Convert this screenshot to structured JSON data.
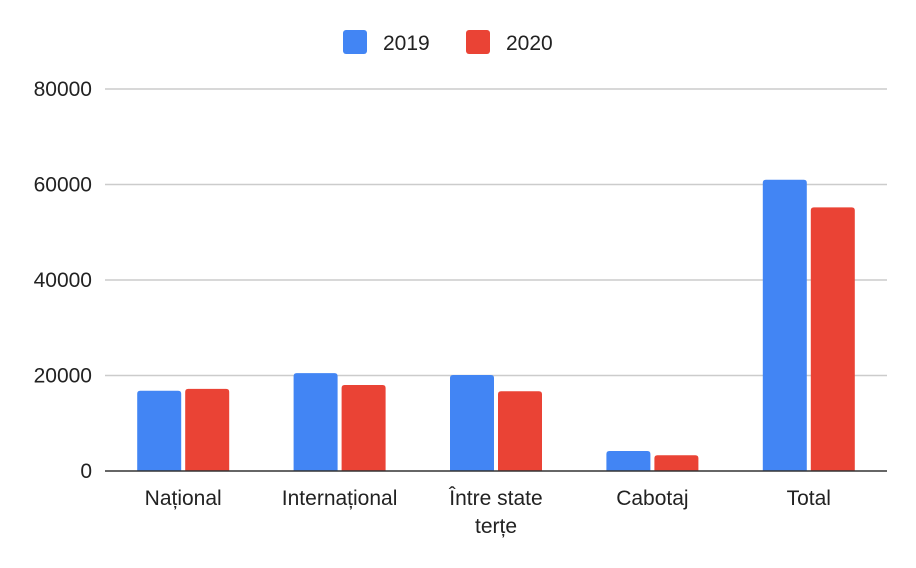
{
  "chart_data": {
    "type": "bar",
    "title": "",
    "xlabel": "",
    "ylabel": "",
    "categories": [
      [
        "Național"
      ],
      [
        "Internațional"
      ],
      [
        "Între state",
        "terțe"
      ],
      [
        "Cabotaj"
      ],
      [
        "Total"
      ]
    ],
    "series": [
      {
        "name": "2019",
        "color": "#4285F4",
        "values": [
          16800,
          20500,
          20100,
          4200,
          61000
        ]
      },
      {
        "name": "2020",
        "color": "#EA4335",
        "values": [
          17200,
          18000,
          16700,
          3300,
          55200
        ]
      }
    ],
    "ylim": [
      0,
      80000
    ],
    "yticks": [
      0,
      20000,
      40000,
      60000,
      80000
    ],
    "grid": true,
    "legend_position": "top-center"
  }
}
